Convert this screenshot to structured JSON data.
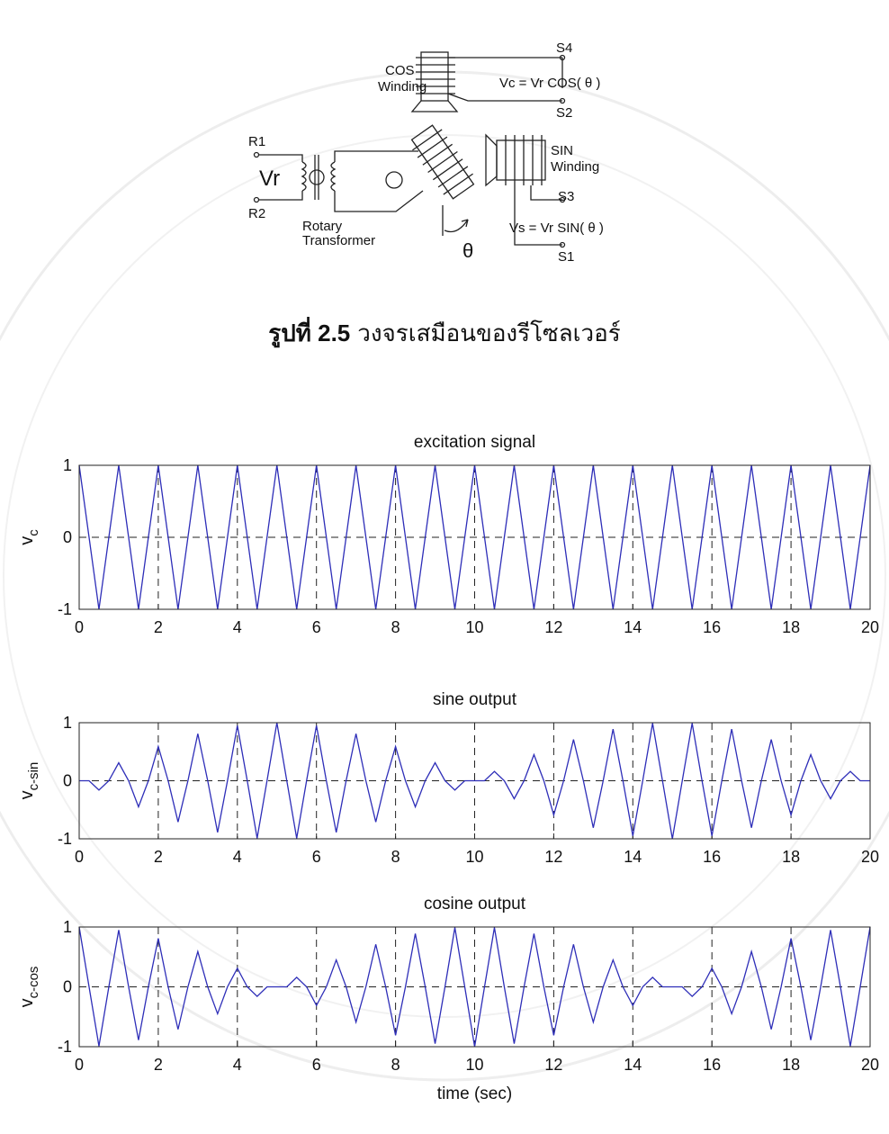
{
  "diagram": {
    "cos_winding": [
      "COS",
      "Winding"
    ],
    "s4": "S4",
    "s2": "S2",
    "vc_eq": "Vc = Vr COS( θ )",
    "r1": "R1",
    "vr": "Vr",
    "r2": "R2",
    "rotary_transformer": [
      "Rotary",
      "Transformer"
    ],
    "sin_winding": [
      "SIN",
      "Winding"
    ],
    "s3": "S3",
    "s1": "S1",
    "vs_eq": "Vs = Vr SIN( θ )",
    "theta": "θ"
  },
  "caption": {
    "label": "รูปที่ 2.5",
    "text": "วงจรเสมือนของรีโซลเวอร์"
  },
  "chart_data": [
    {
      "type": "line",
      "title": "excitation signal",
      "ylabel": "v",
      "ylabel_sub": "c",
      "color": "#2e2eb8",
      "x": [
        0,
        0.25,
        0.5,
        0.75,
        1,
        1.25,
        1.5,
        1.75,
        2,
        2.25,
        2.5,
        2.75,
        3,
        3.25,
        3.5,
        3.75,
        4,
        4.25,
        4.5,
        4.75,
        5,
        5.25,
        5.5,
        5.75,
        6,
        6.25,
        6.5,
        6.75,
        7,
        7.25,
        7.5,
        7.75,
        8,
        8.25,
        8.5,
        8.75,
        9,
        9.25,
        9.5,
        9.75,
        10,
        10.25,
        10.5,
        10.75,
        11,
        11.25,
        11.5,
        11.75,
        12,
        12.25,
        12.5,
        12.75,
        13,
        13.25,
        13.5,
        13.75,
        14,
        14.25,
        14.5,
        14.75,
        15,
        15.25,
        15.5,
        15.75,
        16,
        16.25,
        16.5,
        16.75,
        17,
        17.25,
        17.5,
        17.75,
        18,
        18.25,
        18.5,
        18.75,
        19,
        19.25,
        19.5,
        19.75,
        20
      ],
      "values": [
        1,
        0,
        -1,
        0,
        1,
        0,
        -1,
        0,
        1,
        0,
        -1,
        0,
        1,
        0,
        -1,
        0,
        1,
        0,
        -1,
        0,
        1,
        0,
        -1,
        0,
        1,
        0,
        -1,
        0,
        1,
        0,
        -1,
        0,
        1,
        0,
        -1,
        0,
        1,
        0,
        -1,
        0,
        1,
        0,
        -1,
        0,
        1,
        0,
        -1,
        0,
        1,
        0,
        -1,
        0,
        1,
        0,
        -1,
        0,
        1,
        0,
        -1,
        0,
        1,
        0,
        -1,
        0,
        1,
        0,
        -1,
        0,
        1,
        0,
        -1,
        0,
        1,
        0,
        -1,
        0,
        1,
        0,
        -1,
        0,
        1
      ],
      "xlim": [
        0,
        20
      ],
      "ylim": [
        -1,
        1
      ],
      "xticks": [
        0,
        2,
        4,
        6,
        8,
        10,
        12,
        14,
        16,
        18,
        20
      ],
      "yticks": [
        -1,
        0,
        1
      ],
      "grid": true
    },
    {
      "type": "line",
      "title": "sine output",
      "ylabel": "v",
      "ylabel_sub": "c-sin",
      "color": "#2e2eb8",
      "x": [
        0,
        0.25,
        0.5,
        0.75,
        1,
        1.25,
        1.5,
        1.75,
        2,
        2.25,
        2.5,
        2.75,
        3,
        3.25,
        3.5,
        3.75,
        4,
        4.25,
        4.5,
        4.75,
        5,
        5.25,
        5.5,
        5.75,
        6,
        6.25,
        6.5,
        6.75,
        7,
        7.25,
        7.5,
        7.75,
        8,
        8.25,
        8.5,
        8.75,
        9,
        9.25,
        9.5,
        9.75,
        10,
        10.25,
        10.5,
        10.75,
        11,
        11.25,
        11.5,
        11.75,
        12,
        12.25,
        12.5,
        12.75,
        13,
        13.25,
        13.5,
        13.75,
        14,
        14.25,
        14.5,
        14.75,
        15,
        15.25,
        15.5,
        15.75,
        16,
        16.25,
        16.5,
        16.75,
        17,
        17.25,
        17.5,
        17.75,
        18,
        18.25,
        18.5,
        18.75,
        19,
        19.25,
        19.5,
        19.75,
        20
      ],
      "values": [
        0,
        0,
        -0.16,
        0,
        0.31,
        0,
        -0.45,
        0,
        0.59,
        0,
        -0.71,
        0,
        0.81,
        0,
        -0.89,
        0,
        0.95,
        0,
        -0.99,
        0,
        1,
        0,
        -0.99,
        0,
        0.95,
        0,
        -0.89,
        0,
        0.81,
        0,
        -0.71,
        0,
        0.59,
        0,
        -0.45,
        0,
        0.31,
        0,
        -0.16,
        0,
        0,
        0,
        0.16,
        0,
        -0.31,
        0,
        0.45,
        0,
        -0.59,
        0,
        0.71,
        0,
        -0.81,
        0,
        0.89,
        0,
        -0.95,
        0,
        0.99,
        0,
        -1,
        0,
        0.99,
        0,
        -0.95,
        0,
        0.89,
        0,
        -0.81,
        0,
        0.71,
        0,
        -0.59,
        0,
        0.45,
        0,
        -0.31,
        0,
        0.16,
        0,
        0
      ],
      "xlim": [
        0,
        20
      ],
      "ylim": [
        -1,
        1
      ],
      "xticks": [
        0,
        2,
        4,
        6,
        8,
        10,
        12,
        14,
        16,
        18,
        20
      ],
      "yticks": [
        -1,
        0,
        1
      ],
      "grid": true
    },
    {
      "type": "line",
      "title": "cosine output",
      "ylabel": "v",
      "ylabel_sub": "c-cos",
      "xlabel": "time (sec)",
      "color": "#2e2eb8",
      "x": [
        0,
        0.25,
        0.5,
        0.75,
        1,
        1.25,
        1.5,
        1.75,
        2,
        2.25,
        2.5,
        2.75,
        3,
        3.25,
        3.5,
        3.75,
        4,
        4.25,
        4.5,
        4.75,
        5,
        5.25,
        5.5,
        5.75,
        6,
        6.25,
        6.5,
        6.75,
        7,
        7.25,
        7.5,
        7.75,
        8,
        8.25,
        8.5,
        8.75,
        9,
        9.25,
        9.5,
        9.75,
        10,
        10.25,
        10.5,
        10.75,
        11,
        11.25,
        11.5,
        11.75,
        12,
        12.25,
        12.5,
        12.75,
        13,
        13.25,
        13.5,
        13.75,
        14,
        14.25,
        14.5,
        14.75,
        15,
        15.25,
        15.5,
        15.75,
        16,
        16.25,
        16.5,
        16.75,
        17,
        17.25,
        17.5,
        17.75,
        18,
        18.25,
        18.5,
        18.75,
        19,
        19.25,
        19.5,
        19.75,
        20
      ],
      "values": [
        1,
        0,
        -0.99,
        0,
        0.95,
        0,
        -0.89,
        0,
        0.81,
        0,
        -0.71,
        0,
        0.59,
        0,
        -0.45,
        0,
        0.31,
        0,
        -0.16,
        0,
        0,
        0,
        0.16,
        0,
        -0.31,
        0,
        0.45,
        0,
        -0.59,
        0,
        0.71,
        0,
        -0.81,
        0,
        0.89,
        0,
        -0.95,
        0,
        0.99,
        0,
        -1,
        0,
        0.99,
        0,
        -0.95,
        0,
        0.89,
        0,
        -0.81,
        0,
        0.71,
        0,
        -0.59,
        0,
        0.45,
        0,
        -0.31,
        0,
        0.16,
        0,
        0,
        0,
        -0.16,
        0,
        0.31,
        0,
        -0.45,
        0,
        0.59,
        0,
        -0.71,
        0,
        0.81,
        0,
        -0.89,
        0,
        0.95,
        0,
        -0.99,
        0,
        1
      ],
      "xlim": [
        0,
        20
      ],
      "ylim": [
        -1,
        1
      ],
      "xticks": [
        0,
        2,
        4,
        6,
        8,
        10,
        12,
        14,
        16,
        18,
        20
      ],
      "yticks": [
        -1,
        0,
        1
      ],
      "grid": true
    }
  ]
}
